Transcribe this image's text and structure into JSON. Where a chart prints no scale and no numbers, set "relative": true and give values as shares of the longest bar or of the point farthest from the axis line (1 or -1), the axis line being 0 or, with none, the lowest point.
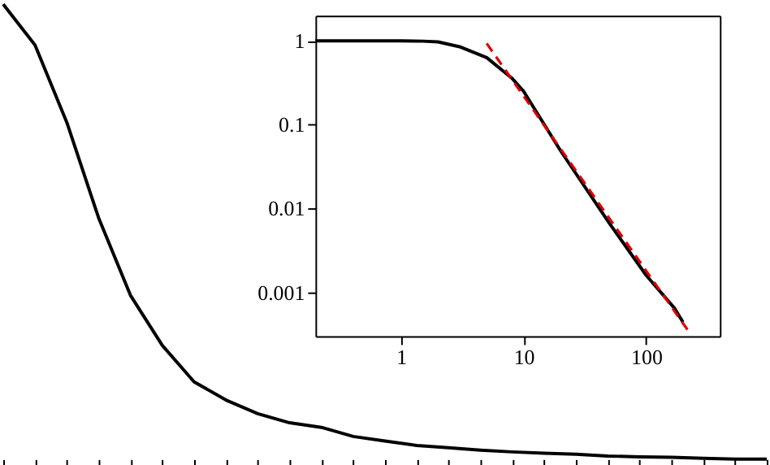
{
  "chart_data": [
    {
      "type": "line",
      "relative": true,
      "tick_labels": false,
      "grid": false,
      "legend": false,
      "categories": [
        null,
        null,
        null,
        null,
        null,
        null,
        null,
        null,
        null,
        null,
        null,
        null,
        null,
        null,
        null,
        null,
        null,
        null,
        null,
        null,
        null,
        null,
        null,
        null,
        null
      ],
      "series": [
        {
          "color": "#000000",
          "values": [
            1.0,
            0.91,
            0.74,
            0.53,
            0.36,
            0.25,
            0.17,
            0.13,
            0.1,
            0.08,
            0.07,
            0.05,
            0.04,
            0.03,
            0.025,
            0.02,
            0.016,
            0.013,
            0.011,
            0.007,
            0.005,
            0.004,
            0.002,
            0,
            0
          ]
        }
      ]
    },
    {
      "type": "line",
      "log": "xy",
      "grid": false,
      "legend": false,
      "xlim": [
        0.2,
        400
      ],
      "ylim": [
        0.0003,
        2
      ],
      "xticks": [
        1,
        10,
        100
      ],
      "yticks": [
        0.001,
        0.01,
        0.1,
        1
      ],
      "series": [
        {
          "color": "#000000",
          "line_style": "solid",
          "x": [
            0.2,
            0.5,
            1,
            1.5,
            2,
            3,
            5,
            8,
            10,
            20,
            50,
            100,
            170,
            200
          ],
          "values": [
            1,
            1,
            1,
            0.99,
            0.97,
            0.85,
            0.63,
            0.36,
            0.25,
            0.049,
            0.0067,
            0.0016,
            0.00065,
            0.00044
          ]
        },
        {
          "color": "#e00000",
          "line_style": "dashed",
          "x": [
            5,
            220
          ],
          "values": [
            0.93,
            0.00035
          ]
        }
      ]
    }
  ]
}
